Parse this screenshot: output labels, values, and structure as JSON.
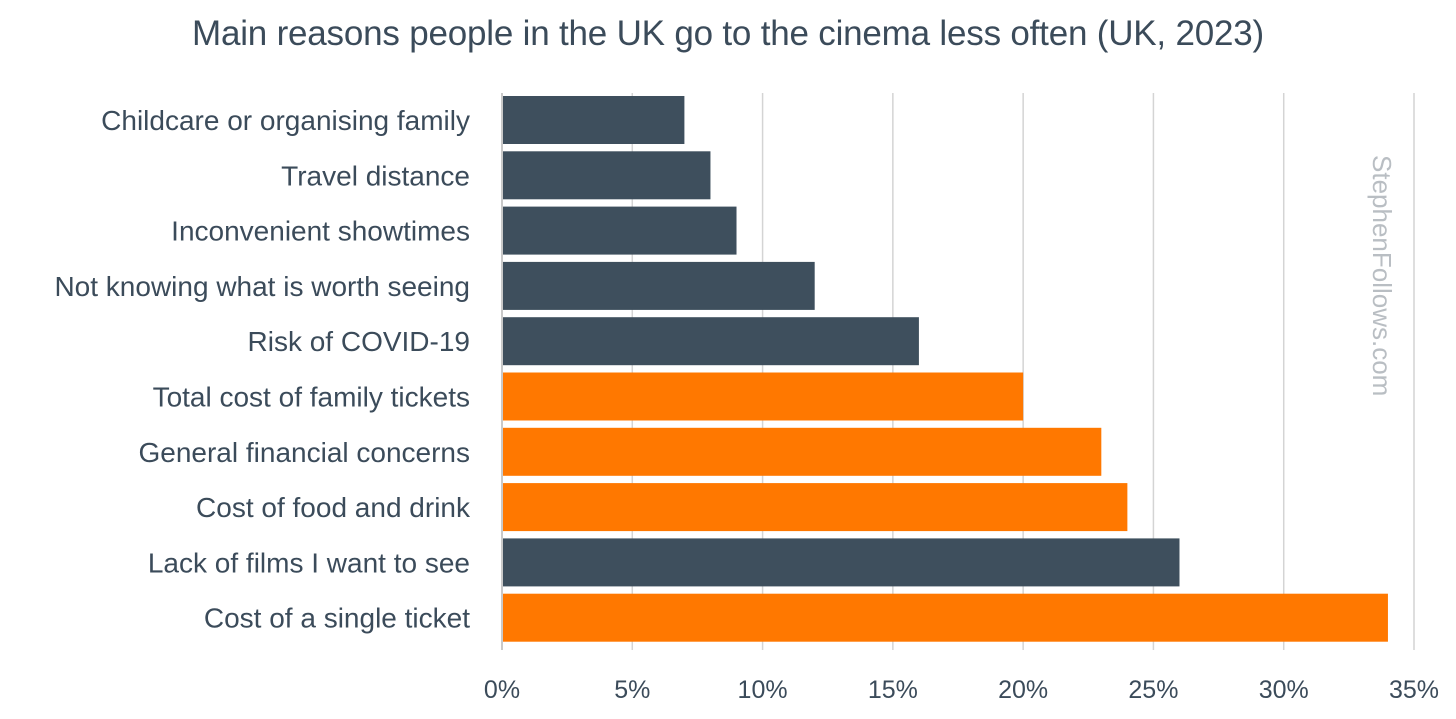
{
  "chart_data": {
    "type": "bar",
    "orientation": "horizontal",
    "title": "Main reasons people in the UK go to the cinema less often (UK, 2023)",
    "xlabel": "",
    "ylabel": "",
    "categories": [
      "Childcare or organising family",
      "Travel distance",
      "Inconvenient showtimes",
      "Not knowing what is worth seeing",
      "Risk of COVID-19",
      "Total cost of family tickets",
      "General financial concerns",
      "Cost of food and drink",
      "Lack of films I want to see",
      "Cost of a single ticket"
    ],
    "values": [
      7,
      8,
      9,
      12,
      16,
      20,
      23,
      24,
      26,
      34
    ],
    "bar_colors": [
      "#3e4f5d",
      "#3e4f5d",
      "#3e4f5d",
      "#3e4f5d",
      "#3e4f5d",
      "#ff7800",
      "#ff7800",
      "#ff7800",
      "#3e4f5d",
      "#ff7800"
    ],
    "xlim": [
      0,
      35
    ],
    "x_ticks": [
      0,
      5,
      10,
      15,
      20,
      25,
      30,
      35
    ],
    "x_tick_labels": [
      "0%",
      "5%",
      "10%",
      "15%",
      "20%",
      "25%",
      "30%",
      "35%"
    ],
    "grid": "vertical",
    "legend": "none",
    "watermark": "StephenFollows.com"
  },
  "colors": {
    "text": "#3b4b5a",
    "grid": "#d4d4d4",
    "axis": "#c9c9c9",
    "watermark": "#b9bec3"
  }
}
